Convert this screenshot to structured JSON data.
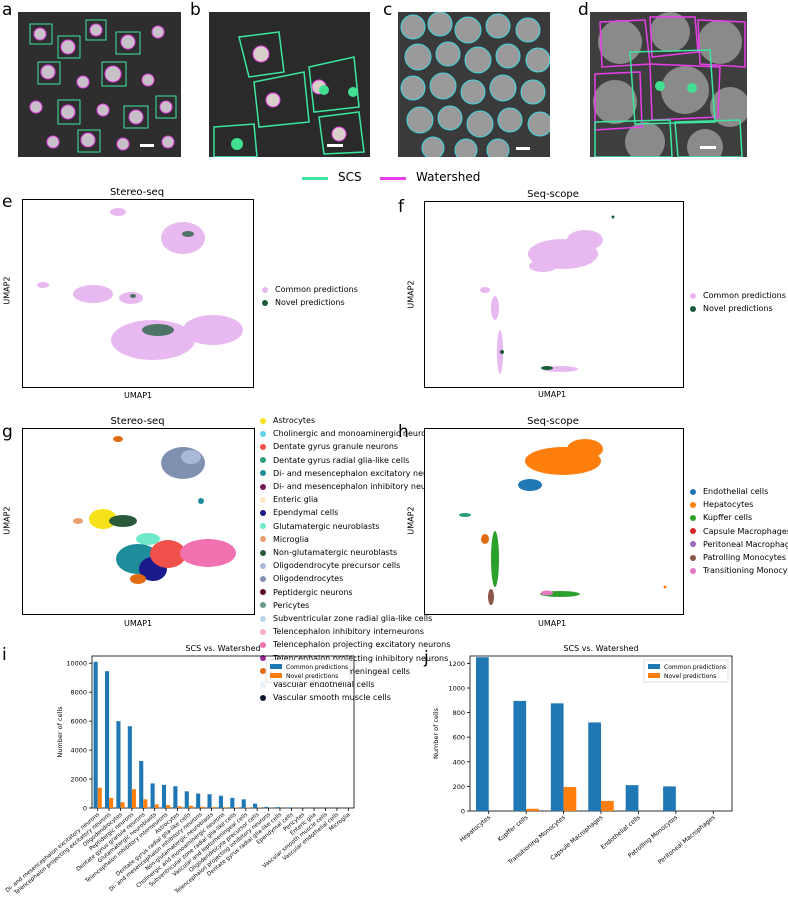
{
  "panels": {
    "a": "a",
    "b": "b",
    "c": "c",
    "d": "d",
    "e": "e",
    "f": "f",
    "g": "g",
    "h": "h",
    "i": "i",
    "j": "j"
  },
  "top_legend": {
    "scs": "SCS",
    "watershed": "Watershed",
    "scs_color": "#3de6a0",
    "watershed_color": "#e83fe8"
  },
  "umap_e": {
    "title": "Stereo-seq",
    "xlabel": "UMAP1",
    "ylabel": "UMAP2"
  },
  "umap_f": {
    "title": "Seq-scope",
    "xlabel": "UMAP1",
    "ylabel": "UMAP2"
  },
  "umap_g": {
    "title": "Stereo-seq",
    "xlabel": "UMAP1",
    "ylabel": "UMAP2"
  },
  "umap_h": {
    "title": "Seq-scope",
    "xlabel": "UMAP1",
    "ylabel": "UMAP2"
  },
  "pred_legend": [
    {
      "label": "Common predictions",
      "color": "#e8b8f0"
    },
    {
      "label": "Novel predictions",
      "color": "#1a5c3a"
    }
  ],
  "legend_g": [
    {
      "label": "Astrocytes",
      "color": "#f5e21a"
    },
    {
      "label": "Cholinergic and monoaminergic neurons",
      "color": "#5fd3e8"
    },
    {
      "label": "Dentate gyrus granule neurons",
      "color": "#f0504a"
    },
    {
      "label": "Dentate gyrus radial glia-like cells",
      "color": "#2a9d7a"
    },
    {
      "label": "Di- and mesencephalon excitatory neurons",
      "color": "#1e8c9a"
    },
    {
      "label": "Di- and mesencephalon inhibitory neurons",
      "color": "#7a1a5a"
    },
    {
      "label": "Enteric glia",
      "color": "#fde9c8"
    },
    {
      "label": "Ependymal cells",
      "color": "#1a1a8c"
    },
    {
      "label": "Glutamatergic neuroblasts",
      "color": "#6ee8c8"
    },
    {
      "label": "Microglia",
      "color": "#e8a070"
    },
    {
      "label": "Non-glutamatergic neuroblasts",
      "color": "#2a5a3a"
    },
    {
      "label": "Oligodendrocyte precursor cells",
      "color": "#a8b8d8"
    },
    {
      "label": "Oligodendrocytes",
      "color": "#8090b0"
    },
    {
      "label": "Peptidergic neurons",
      "color": "#5a0a1a"
    },
    {
      "label": "Pericytes",
      "color": "#6a9a8a"
    },
    {
      "label": "Subventricular zone radial glia-like cells",
      "color": "#b8d8e8"
    },
    {
      "label": "Telencephalon inhibitory interneurons",
      "color": "#f8b0c0"
    },
    {
      "label": "Telencephalon projecting excitatory neurons",
      "color": "#f070b0"
    },
    {
      "label": "Telencephalon projecting inhibitory neurons",
      "color": "#9a2aa0"
    },
    {
      "label": "Vascular and leptomeningeal cells",
      "color": "#e06a10"
    },
    {
      "label": "Vascular endothelial cells",
      "color": "#e8f0f8"
    },
    {
      "label": "Vascular smooth muscle cells",
      "color": "#101830"
    }
  ],
  "legend_h": [
    {
      "label": "Endothelial cells",
      "color": "#1f77b4"
    },
    {
      "label": "Hepatocytes",
      "color": "#ff7f0e"
    },
    {
      "label": "Kupffer cells",
      "color": "#2ca02c"
    },
    {
      "label": "Capsule Macrophages",
      "color": "#d62728"
    },
    {
      "label": "Peritoneal Macrophages",
      "color": "#9467bd"
    },
    {
      "label": "Patrolling Monocytes",
      "color": "#8c564b"
    },
    {
      "label": "Transitioning Monocytes",
      "color": "#e377c2"
    }
  ],
  "chart_data": [
    {
      "type": "bar",
      "panel": "i",
      "title": "SCS vs. Watershed",
      "ylabel": "Number of cells",
      "xlabel": "",
      "ylim": [
        0,
        10500
      ],
      "yticks": [
        0,
        2000,
        4000,
        6000,
        8000,
        10000
      ],
      "legend_position": "top-right",
      "categories": [
        "Di- and mesencephalon excitatory neurons",
        "Telencephalon projecting excitatory neurons",
        "Oligodendrocytes",
        "Peptidergic neurons",
        "Dentate gyrus granule neurons",
        "Glutamatergic neuroblasts",
        "Telencephalon inhibitory interneurons",
        "Astrocytes",
        "Dentate gyrus radial glia-like cells",
        "Di- and mesencephalon inhibitory neurons",
        "Non-glutamatergic neuroblasts",
        "Cholinergic and monoaminergic neurons",
        "Subventricular zone radial glia-like cells",
        "Vascular and leptomeningeal cells",
        "Oligodendrocyte precursor cells",
        "Telencephalon projecting inhibitory neurons",
        "Dentate gyrus radial glia-like cells",
        "Ependymal cells",
        "Pericytes",
        "Enteric glia",
        "Vascular smooth muscle cells",
        "Vascular endothelial cells",
        "Microglia"
      ],
      "series": [
        {
          "name": "Common predictions",
          "color": "#1f77b4",
          "values": [
            10100,
            9450,
            6000,
            5650,
            3250,
            1700,
            1600,
            1500,
            1150,
            1000,
            950,
            850,
            700,
            600,
            300,
            80,
            60,
            40,
            20,
            10,
            10,
            5,
            5
          ]
        },
        {
          "name": "Novel predictions",
          "color": "#ff7f0e",
          "values": [
            1400,
            700,
            400,
            1300,
            600,
            250,
            200,
            120,
            150,
            80,
            60,
            50,
            40,
            30,
            20,
            10,
            10,
            5,
            5,
            0,
            0,
            0,
            0
          ]
        }
      ]
    },
    {
      "type": "bar",
      "panel": "j",
      "title": "SCS vs. Watershed",
      "ylabel": "Number of cells",
      "xlabel": "",
      "ylim": [
        0,
        1260
      ],
      "yticks": [
        0,
        200,
        400,
        600,
        800,
        1000,
        1200
      ],
      "legend_position": "top-right",
      "categories": [
        "Hepatocytes",
        "Kupffer cells",
        "Transitioning Monocytes",
        "Capsule Macrophages",
        "Endothelial cells",
        "Patrolling Monocytes",
        "Peritoneal Macrophages"
      ],
      "series": [
        {
          "name": "Common predictions",
          "color": "#1f77b4",
          "values": [
            1250,
            895,
            875,
            720,
            210,
            200,
            0
          ]
        },
        {
          "name": "Novel predictions",
          "color": "#ff7f0e",
          "values": [
            0,
            18,
            195,
            82,
            0,
            0,
            0
          ]
        }
      ]
    }
  ]
}
